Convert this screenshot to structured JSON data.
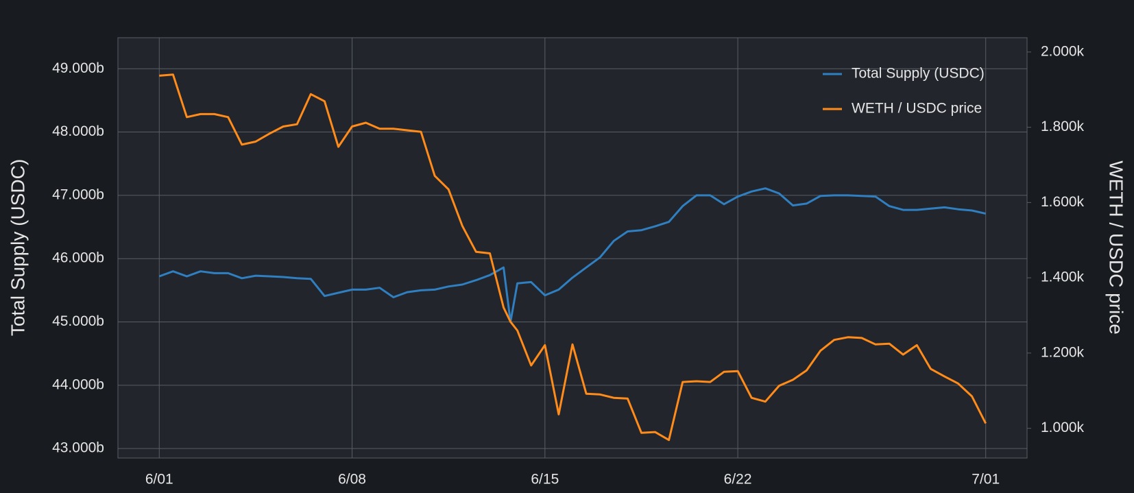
{
  "chart_data": {
    "type": "line",
    "xlim": [
      -1.5,
      31.5
    ],
    "xticks": [
      {
        "value": 0,
        "label": "6/01"
      },
      {
        "value": 7,
        "label": "6/08"
      },
      {
        "value": 14,
        "label": "6/15"
      },
      {
        "value": 21,
        "label": "6/22"
      },
      {
        "value": 30,
        "label": "7/01"
      }
    ],
    "ylabel": "Total Supply (USDC)",
    "ylim": [
      42.85,
      49.49
    ],
    "yticks": [
      {
        "value": 43,
        "label": "43.000b"
      },
      {
        "value": 44,
        "label": "44.000b"
      },
      {
        "value": 45,
        "label": "45.000b"
      },
      {
        "value": 46,
        "label": "46.000b"
      },
      {
        "value": 47,
        "label": "47.000b"
      },
      {
        "value": 48,
        "label": "48.000b"
      },
      {
        "value": 49,
        "label": "49.000b"
      }
    ],
    "y2label": "WETH / USDC price",
    "y2lim": [
      921,
      2038
    ],
    "y2ticks": [
      {
        "value": 1000,
        "label": "1.000k"
      },
      {
        "value": 1200,
        "label": "1.200k"
      },
      {
        "value": 1400,
        "label": "1.400k"
      },
      {
        "value": 1600,
        "label": "1.600k"
      },
      {
        "value": 1800,
        "label": "1.800k"
      },
      {
        "value": 2000,
        "label": "2.000k"
      }
    ],
    "grid": true,
    "legend": "upper right",
    "x": [
      0,
      0.5,
      1,
      1.5,
      2,
      2.5,
      3,
      3.5,
      4,
      4.5,
      5,
      5.5,
      6,
      6.5,
      7,
      7.5,
      8,
      8.5,
      9,
      9.5,
      10,
      10.5,
      11,
      11.5,
      12,
      12.5,
      12.75,
      13,
      13.5,
      14,
      14.5,
      15,
      15.5,
      16,
      16.5,
      17,
      17.5,
      18,
      18.5,
      19,
      19.5,
      20,
      20.5,
      21,
      21.5,
      22,
      22.5,
      23,
      23.5,
      24,
      24.5,
      25,
      25.5,
      26,
      26.5,
      27,
      27.5,
      28,
      28.5,
      29,
      29.5,
      30
    ],
    "series": [
      {
        "name": "Total Supply (USDC)",
        "color": "#2f7fc1",
        "axis": "y",
        "values": [
          45.72,
          45.8,
          45.72,
          45.8,
          45.77,
          45.77,
          45.69,
          45.73,
          45.72,
          45.71,
          45.69,
          45.68,
          45.41,
          45.46,
          45.51,
          45.51,
          45.54,
          45.39,
          45.47,
          45.5,
          45.51,
          45.56,
          45.59,
          45.66,
          45.74,
          45.86,
          45.0,
          45.61,
          45.63,
          45.42,
          45.51,
          45.7,
          45.86,
          46.02,
          46.28,
          46.43,
          46.45,
          46.51,
          46.58,
          46.83,
          47.0,
          47.0,
          46.86,
          46.98,
          47.06,
          47.11,
          47.03,
          46.84,
          46.87,
          46.99,
          47.0,
          47.0,
          46.99,
          46.98,
          46.83,
          46.77,
          46.77,
          46.79,
          46.81,
          46.78,
          46.76,
          46.71
        ]
      },
      {
        "name": "WETH / USDC price",
        "color": "#ff8c1a",
        "axis": "y2",
        "values": [
          1937,
          1940,
          1827,
          1835,
          1835,
          1827,
          1754,
          1762,
          1783,
          1802,
          1808,
          1888,
          1869,
          1748,
          1802,
          1812,
          1796,
          1796,
          1792,
          1788,
          1671,
          1635,
          1538,
          1469,
          1465,
          1321,
          1283,
          1260,
          1167,
          1221,
          1037,
          1223,
          1092,
          1090,
          1081,
          1079,
          988,
          990,
          969,
          1123,
          1125,
          1123,
          1150,
          1152,
          1081,
          1071,
          1113,
          1129,
          1154,
          1206,
          1235,
          1242,
          1240,
          1223,
          1225,
          1196,
          1221,
          1158,
          1138,
          1119,
          1085,
          1013
        ]
      }
    ]
  }
}
